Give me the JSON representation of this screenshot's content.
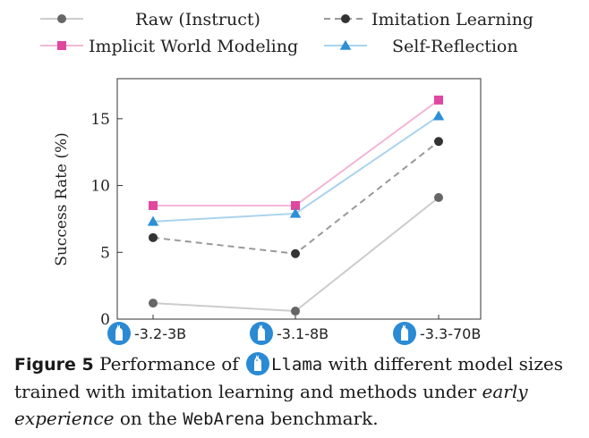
{
  "chart_data": {
    "type": "line",
    "categories": [
      "-3.2-3B",
      "-3.1-8B",
      "-3.3-70B"
    ],
    "ylabel": "Success Rate (%)",
    "xlabel": "",
    "ylim": [
      0,
      18
    ],
    "yticks": [
      0,
      5,
      10,
      15
    ],
    "grid": false,
    "legend_position": "top",
    "series": [
      {
        "name": "Raw (Instruct)",
        "values": [
          1.2,
          0.6,
          9.1
        ],
        "color": "#cccccc",
        "marker_color": "#666666",
        "marker": "circle",
        "dash": false
      },
      {
        "name": "Imitation Learning",
        "values": [
          6.1,
          4.9,
          13.3
        ],
        "color": "#999999",
        "marker_color": "#333333",
        "marker": "circle",
        "dash": true
      },
      {
        "name": "Implicit World Modeling",
        "values": [
          8.5,
          8.5,
          16.4
        ],
        "color": "#f4b6d6",
        "marker_color": "#e0479e",
        "marker": "square",
        "dash": false
      },
      {
        "name": "Self-Reflection",
        "values": [
          7.3,
          7.9,
          15.2
        ],
        "color": "#a9d3ef",
        "marker_color": "#2d8fd6",
        "marker": "triangle",
        "dash": false
      }
    ]
  },
  "caption": {
    "label": "Figure 5",
    "part1": " Performance of ",
    "model": "Llama",
    "part2": " with different model sizes trained with imitation learning and methods under ",
    "emph": "early experience",
    "part3": " on the ",
    "bench": "WebArena",
    "part4": " benchmark."
  },
  "icons": {
    "model_logo": "llama-icon"
  },
  "colors": {
    "logo_blue": "#2a8ad4"
  }
}
